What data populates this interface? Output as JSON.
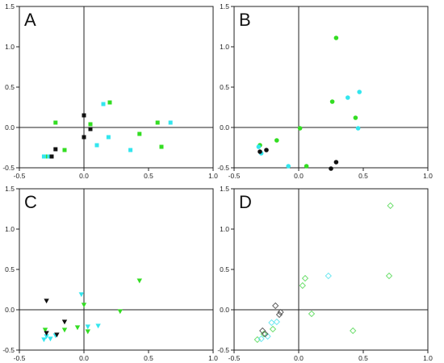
{
  "figure": {
    "background": "#ffffff"
  },
  "colors": {
    "green": "#33dd22",
    "cyan": "#33e6ee",
    "black": "#111111",
    "axis": "#222222",
    "light_green": "#66dd66",
    "light_cyan": "#66e6f0",
    "gray": "#555555"
  },
  "chart_data": [
    {
      "type": "scatter",
      "panel_label": "A",
      "marker": "square",
      "xlim": [
        -0.5,
        1.0
      ],
      "ylim": [
        -0.5,
        1.5
      ],
      "x_ticks": [
        "-0.5",
        "0.0",
        "0.5",
        "1.0"
      ],
      "y_ticks": [
        "-0.5",
        "0.0",
        "0.5",
        "1.0",
        "1.5"
      ],
      "grid": false,
      "series": [
        {
          "color": "green",
          "points": [
            [
              -0.28,
              -0.36
            ],
            [
              -0.22,
              0.06
            ],
            [
              -0.15,
              -0.28
            ],
            [
              0.05,
              0.04
            ],
            [
              0.2,
              0.31
            ],
            [
              0.43,
              -0.08
            ],
            [
              0.57,
              0.06
            ],
            [
              0.6,
              -0.24
            ]
          ]
        },
        {
          "color": "cyan",
          "points": [
            [
              -0.31,
              -0.36
            ],
            [
              -0.27,
              -0.36
            ],
            [
              0.1,
              -0.22
            ],
            [
              0.15,
              0.29
            ],
            [
              0.19,
              -0.12
            ],
            [
              0.36,
              -0.28
            ],
            [
              0.67,
              0.06
            ]
          ]
        },
        {
          "color": "black",
          "points": [
            [
              -0.25,
              -0.36
            ],
            [
              -0.22,
              -0.27
            ],
            [
              0.0,
              0.15
            ],
            [
              0.0,
              -0.12
            ],
            [
              0.05,
              -0.02
            ]
          ]
        }
      ]
    },
    {
      "type": "scatter",
      "panel_label": "B",
      "marker": "circle",
      "xlim": [
        -0.5,
        1.0
      ],
      "ylim": [
        -0.5,
        1.5
      ],
      "x_ticks": [
        "-0.5",
        "0.0",
        "0.5",
        "1.0"
      ],
      "y_ticks": [
        "-0.5",
        "0.0",
        "0.5",
        "1.0",
        "1.5"
      ],
      "grid": false,
      "series": [
        {
          "color": "green",
          "points": [
            [
              -0.3,
              -0.22
            ],
            [
              -0.17,
              -0.16
            ],
            [
              0.01,
              -0.01
            ],
            [
              0.06,
              -0.48
            ],
            [
              0.26,
              0.32
            ],
            [
              0.29,
              1.11
            ],
            [
              0.44,
              0.12
            ]
          ]
        },
        {
          "color": "cyan",
          "points": [
            [
              -0.31,
              -0.24
            ],
            [
              -0.29,
              -0.32
            ],
            [
              -0.08,
              -0.48
            ],
            [
              0.38,
              0.37
            ],
            [
              0.47,
              0.44
            ],
            [
              0.46,
              -0.01
            ]
          ]
        },
        {
          "color": "black",
          "points": [
            [
              -0.3,
              -0.3
            ],
            [
              -0.25,
              -0.28
            ],
            [
              0.25,
              -0.51
            ],
            [
              0.29,
              -0.43
            ]
          ]
        }
      ]
    },
    {
      "type": "scatter",
      "panel_label": "C",
      "marker": "triangle-down",
      "xlim": [
        -0.5,
        1.0
      ],
      "ylim": [
        -0.5,
        1.5
      ],
      "x_ticks": [
        "-0.5",
        "0.0",
        "0.5",
        "1.0"
      ],
      "y_ticks": [
        "-0.5",
        "0.0",
        "0.5",
        "1.0",
        "1.5"
      ],
      "grid": false,
      "series": [
        {
          "color": "green",
          "points": [
            [
              -0.3,
              -0.25
            ],
            [
              -0.15,
              -0.25
            ],
            [
              -0.05,
              -0.22
            ],
            [
              0.0,
              0.06
            ],
            [
              0.03,
              -0.27
            ],
            [
              0.28,
              -0.02
            ],
            [
              0.43,
              0.36
            ]
          ]
        },
        {
          "color": "cyan",
          "points": [
            [
              -0.31,
              -0.37
            ],
            [
              -0.29,
              -0.33
            ],
            [
              -0.26,
              -0.36
            ],
            [
              -0.22,
              -0.32
            ],
            [
              -0.02,
              0.19
            ],
            [
              0.03,
              -0.21
            ],
            [
              0.11,
              -0.2
            ]
          ]
        },
        {
          "color": "black",
          "points": [
            [
              -0.29,
              0.11
            ],
            [
              -0.29,
              -0.29
            ],
            [
              -0.21,
              -0.31
            ],
            [
              -0.15,
              -0.15
            ]
          ]
        }
      ]
    },
    {
      "type": "scatter",
      "panel_label": "D",
      "marker": "diamond-open",
      "xlim": [
        -0.5,
        1.0
      ],
      "ylim": [
        -0.5,
        1.5
      ],
      "x_ticks": [
        "-0.5",
        "0.0",
        "0.5",
        "1.0"
      ],
      "y_ticks": [
        "-0.5",
        "0.0",
        "0.5",
        "1.0",
        "1.5"
      ],
      "grid": false,
      "series": [
        {
          "color": "light_green",
          "points": [
            [
              -0.32,
              -0.37
            ],
            [
              -0.27,
              -0.3
            ],
            [
              -0.2,
              -0.24
            ],
            [
              0.03,
              0.3
            ],
            [
              0.05,
              0.39
            ],
            [
              0.1,
              -0.05
            ],
            [
              0.42,
              -0.26
            ],
            [
              0.7,
              0.42
            ],
            [
              0.71,
              1.29
            ]
          ]
        },
        {
          "color": "light_cyan",
          "points": [
            [
              -0.29,
              -0.36
            ],
            [
              -0.24,
              -0.33
            ],
            [
              -0.21,
              -0.16
            ],
            [
              -0.17,
              -0.15
            ],
            [
              0.23,
              0.42
            ]
          ]
        },
        {
          "color": "gray",
          "points": [
            [
              -0.28,
              -0.26
            ],
            [
              -0.26,
              -0.3
            ],
            [
              -0.18,
              0.05
            ],
            [
              -0.15,
              -0.06
            ],
            [
              -0.14,
              -0.03
            ]
          ]
        }
      ]
    }
  ]
}
